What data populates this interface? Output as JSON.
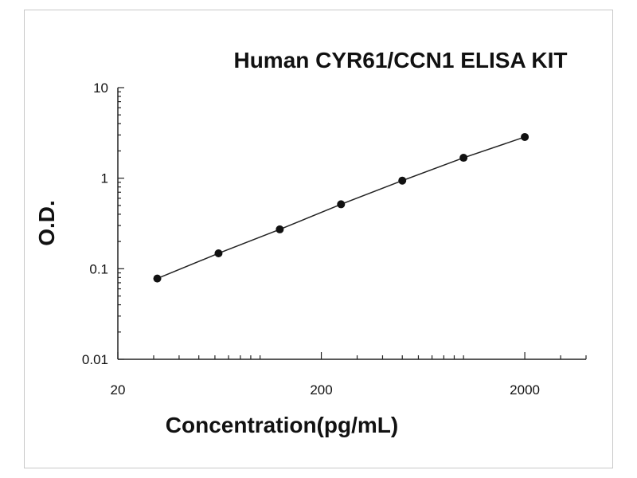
{
  "chart_data": {
    "type": "scatter",
    "title": "Human CYR61/CCN1 ELISA KIT",
    "xlabel": "Concentration(pg/mL)",
    "ylabel": "O.D.",
    "xscale": "log",
    "yscale": "log",
    "xlim": [
      20,
      4000
    ],
    "ylim": [
      0.01,
      10
    ],
    "xticks": [
      20,
      200,
      2000
    ],
    "xtick_labels": [
      "20",
      "200",
      "2000"
    ],
    "yticks": [
      0.01,
      0.1,
      1,
      10
    ],
    "ytick_labels": [
      "0.01",
      "0.1",
      "1",
      "10"
    ],
    "grid": false,
    "series": [
      {
        "x": [
          31.25,
          62.5,
          125,
          250,
          500,
          1000,
          2000
        ],
        "y": [
          0.078,
          0.148,
          0.272,
          0.515,
          0.94,
          1.68,
          2.85
        ],
        "marker": "circle",
        "line": true,
        "color": "#111111"
      }
    ]
  }
}
